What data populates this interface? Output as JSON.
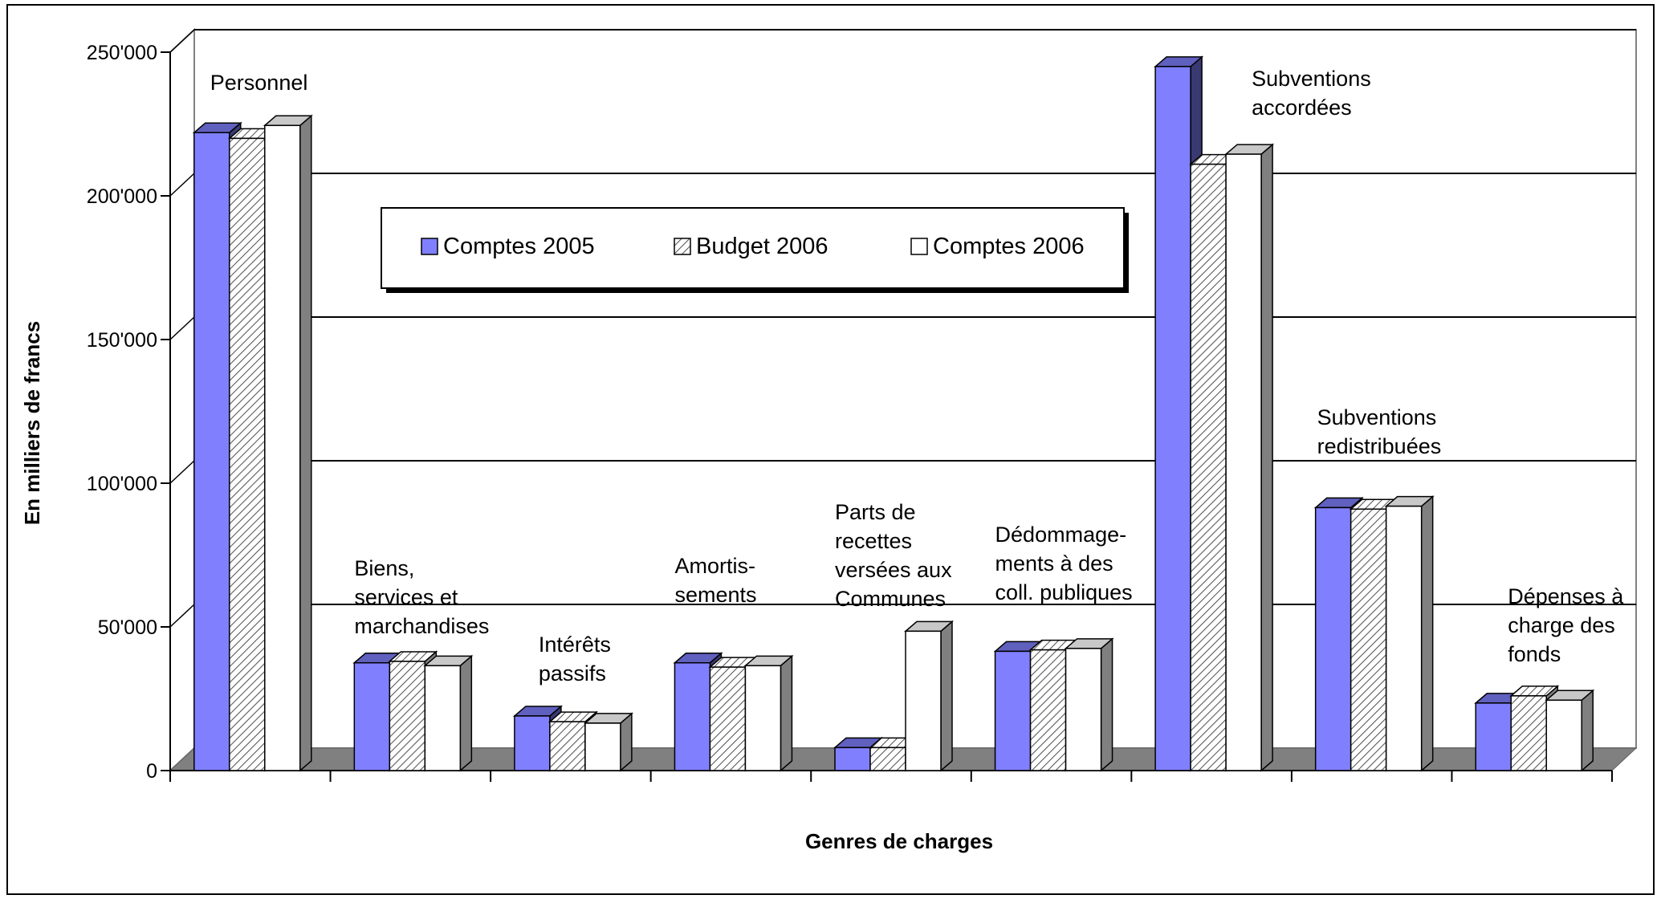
{
  "chart_data": {
    "type": "bar",
    "title": "",
    "xlabel": "Genres de charges",
    "ylabel": "En milliers de francs",
    "ylim": [
      0,
      250000
    ],
    "yticks": [
      "0",
      "50'000",
      "100'000",
      "150'000",
      "200'000",
      "250'000"
    ],
    "grid": true,
    "legend_position": "top-center",
    "categories": [
      [
        "Personnel"
      ],
      [
        "Biens,",
        "services et",
        "marchandises"
      ],
      [
        "Intérêts",
        "passifs"
      ],
      [
        "Amortis-",
        "sements"
      ],
      [
        "Parts de",
        "recettes",
        "versées aux",
        "Communes"
      ],
      [
        "Dédommage-",
        "ments à des",
        "coll. publiques"
      ],
      [
        "Subventions",
        "accordées"
      ],
      [
        "Subventions",
        "redistribuées"
      ],
      [
        "Dépenses à",
        "charge des",
        "fonds"
      ]
    ],
    "series": [
      {
        "name": "Comptes 2005",
        "color": "#8080FF",
        "pattern": "solid",
        "values": [
          222000,
          37500,
          19000,
          37500,
          8000,
          41500,
          245000,
          91500,
          23500
        ]
      },
      {
        "name": "Budget 2006",
        "color": "#FFFFFF",
        "pattern": "hatched",
        "values": [
          220000,
          38000,
          17000,
          36000,
          8000,
          42000,
          211000,
          91000,
          26000
        ]
      },
      {
        "name": "Comptes 2006",
        "color": "#FFFFFF",
        "pattern": "solid",
        "values": [
          224500,
          36500,
          16500,
          36500,
          48500,
          42500,
          214500,
          92000,
          24500
        ]
      }
    ]
  }
}
